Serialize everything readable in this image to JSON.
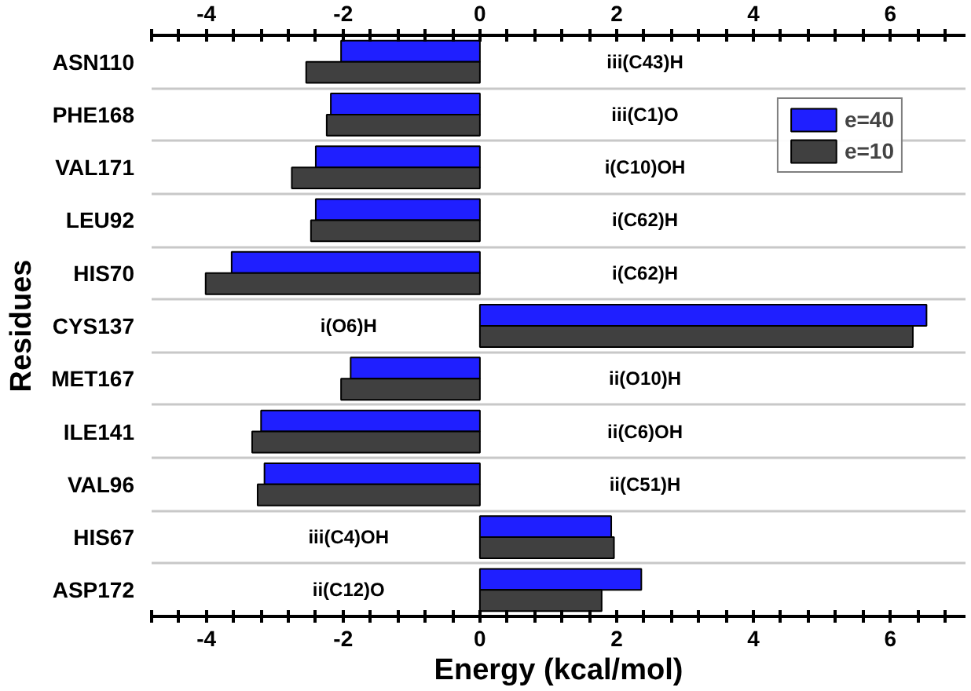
{
  "chart_data": {
    "type": "bar",
    "orientation": "horizontal",
    "xlabel": "Energy (kcal/mol)",
    "ylabel": "Residues",
    "categories": [
      "ASN110",
      "PHE168",
      "VAL171",
      "LEU92",
      "HIS70",
      "CYS137",
      "MET167",
      "ILE141",
      "VAL96",
      "HIS67",
      "ASP172"
    ],
    "series": [
      {
        "name": "e=40",
        "color": "#1f1fff",
        "values": [
          -2.03,
          -2.18,
          -2.4,
          -2.4,
          -3.63,
          6.53,
          -1.89,
          -3.2,
          -3.15,
          1.92,
          2.36
        ]
      },
      {
        "name": "e=10",
        "color": "#404040",
        "values": [
          -2.54,
          -2.24,
          -2.75,
          -2.47,
          -4.01,
          6.33,
          -2.03,
          -3.33,
          -3.25,
          1.96,
          1.78
        ]
      }
    ],
    "xlim": [
      -4.8,
      7.1
    ],
    "xticks": [
      {
        "value": -4.8,
        "label": null
      },
      {
        "value": -4.4,
        "label": null
      },
      -4,
      {
        "value": -3.6,
        "label": null
      },
      {
        "value": -3.2,
        "label": null
      },
      {
        "value": -2.8,
        "label": null
      },
      {
        "value": -2.4,
        "label": null
      },
      -2,
      {
        "value": -1.6,
        "label": null
      },
      {
        "value": -1.2,
        "label": null
      },
      {
        "value": -0.8,
        "label": null
      },
      {
        "value": -0.4,
        "label": null
      },
      0,
      {
        "value": 0.4,
        "label": null
      },
      {
        "value": 0.8,
        "label": null
      },
      {
        "value": 1.2,
        "label": null
      },
      {
        "value": 1.6,
        "label": null
      },
      2,
      {
        "value": 2.4,
        "label": null
      },
      {
        "value": 2.8,
        "label": null
      },
      {
        "value": 3.2,
        "label": null
      },
      {
        "value": 3.6,
        "label": null
      },
      4,
      {
        "value": 4.4,
        "label": null
      },
      {
        "value": 4.8,
        "label": null
      },
      {
        "value": 5.2,
        "label": null
      },
      {
        "value": 5.6,
        "label": null
      },
      6,
      {
        "value": 6.4,
        "label": null
      },
      {
        "value": 6.8,
        "label": null
      }
    ],
    "x2lim": [
      -4.8,
      7.1
    ],
    "x2ticks": [
      {
        "value": -4.8,
        "label": null
      },
      {
        "value": -4.4,
        "label": null
      },
      -4,
      {
        "value": -3.6,
        "label": null
      },
      {
        "value": -3.2,
        "label": null
      },
      {
        "value": -2.8,
        "label": null
      },
      {
        "value": -2.4,
        "label": null
      },
      -2,
      {
        "value": -1.6,
        "label": null
      },
      {
        "value": -1.2,
        "label": null
      },
      {
        "value": -0.8,
        "label": null
      },
      {
        "value": -0.4,
        "label": null
      },
      0,
      {
        "value": 0.4,
        "label": null
      },
      {
        "value": 0.8,
        "label": null
      },
      {
        "value": 1.2,
        "label": null
      },
      {
        "value": 1.6,
        "label": null
      },
      2,
      {
        "value": 2.4,
        "label": null
      },
      {
        "value": 2.8,
        "label": null
      },
      {
        "value": 3.2,
        "label": null
      },
      {
        "value": 3.6,
        "label": null
      },
      4,
      {
        "value": 4.4,
        "label": null
      },
      {
        "value": 4.8,
        "label": null
      },
      {
        "value": 5.2,
        "label": null
      },
      {
        "value": 5.6,
        "label": null
      },
      6,
      {
        "value": 6.4,
        "label": null
      },
      {
        "value": 6.8,
        "label": null
      }
    ],
    "annotations": [
      "iii(C43)H",
      "iii(C1)O",
      "i(C10)OH",
      "i(C62)H",
      "i(C62)H",
      "i(O6)H",
      "ii(O10)H",
      "ii(C6)OH",
      "ii(C51)H",
      "iii(C4)OH",
      "ii(C12)O"
    ],
    "grid": "y",
    "legend": "top right"
  }
}
